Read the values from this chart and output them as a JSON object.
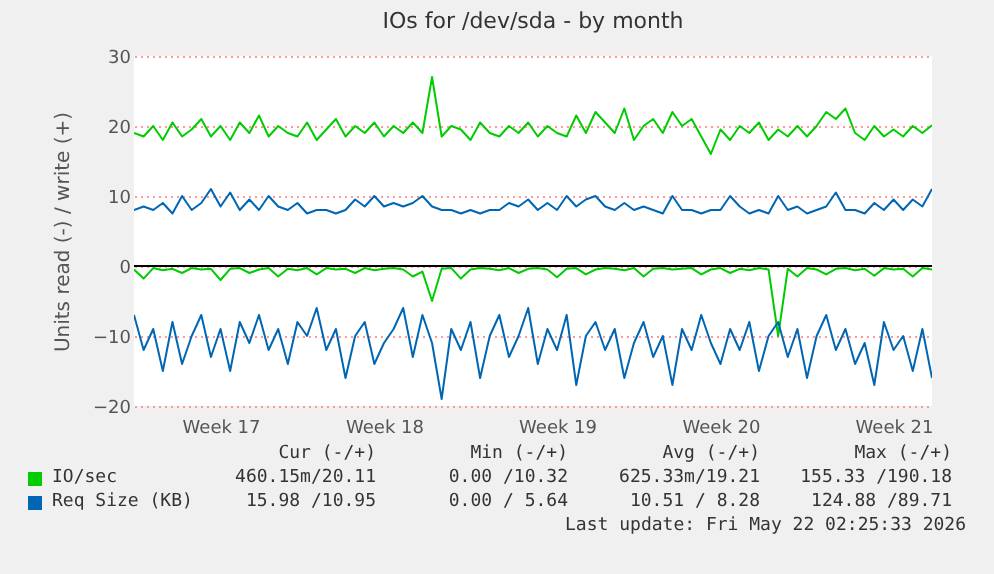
{
  "chart_data": {
    "type": "line",
    "title": "IOs for /dev/sda - by month",
    "ylabel": "Units read (-) / write (+)",
    "categories": [
      null,
      null,
      null,
      null,
      null,
      null,
      null,
      null,
      null,
      "Week 17",
      null,
      null,
      null,
      null,
      null,
      null,
      null,
      null,
      null,
      null,
      null,
      null,
      null,
      null,
      null,
      null,
      "Week 18",
      null,
      null,
      null,
      null,
      null,
      null,
      null,
      null,
      null,
      null,
      null,
      null,
      null,
      null,
      null,
      null,
      null,
      "Week 19",
      null,
      null,
      null,
      null,
      null,
      null,
      null,
      null,
      null,
      null,
      null,
      null,
      null,
      null,
      null,
      null,
      "Week 20",
      null,
      null,
      null,
      null,
      null,
      null,
      null,
      null,
      null,
      null,
      null,
      null,
      null,
      null,
      null,
      null,
      null,
      "Week 21",
      null,
      null,
      null,
      null
    ],
    "series": [
      {
        "name": "IO/sec",
        "color": "#00cc00",
        "values": [
          19,
          18.5,
          20,
          18,
          20.5,
          18.5,
          19.5,
          21,
          18.5,
          20,
          18,
          20.5,
          19,
          21.5,
          18.5,
          20,
          19,
          18.5,
          20.5,
          18,
          19.5,
          21,
          18.5,
          20,
          19,
          20.5,
          18.5,
          20,
          19,
          20.5,
          19,
          27,
          18.5,
          20,
          19.5,
          18,
          20.5,
          19,
          18.5,
          20,
          19,
          20.5,
          18.5,
          20,
          19,
          18.5,
          21.5,
          19,
          22,
          20.5,
          19,
          22.5,
          18,
          20,
          21,
          19,
          22,
          20,
          21,
          18.5,
          16,
          19.5,
          18,
          20,
          19,
          20.5,
          18,
          19.5,
          18.5,
          20,
          18.5,
          20,
          22,
          21,
          22.5,
          19,
          18,
          20,
          18.5,
          19.5,
          18.5,
          20,
          19,
          20.1
        ]
      },
      {
        "color": "#00cc00",
        "values": [
          -0.5,
          -1.8,
          -0.3,
          -0.6,
          -0.4,
          -1,
          -0.3,
          -0.5,
          -0.4,
          -2,
          -0.4,
          -0.3,
          -1,
          -0.5,
          -0.3,
          -1.5,
          -0.4,
          -0.6,
          -0.3,
          -1.2,
          -0.3,
          -0.5,
          -0.4,
          -1,
          -0.3,
          -0.6,
          -0.4,
          -0.3,
          -0.5,
          -1.5,
          -0.8,
          -5,
          -0.4,
          -0.3,
          -1.8,
          -0.5,
          -0.3,
          -0.4,
          -0.6,
          -0.3,
          -1,
          -0.4,
          -0.3,
          -0.5,
          -1.6,
          -0.4,
          -0.3,
          -1.2,
          -0.5,
          -0.3,
          -0.4,
          -0.6,
          -0.3,
          -1.5,
          -0.4,
          -0.3,
          -0.5,
          -0.4,
          -0.3,
          -1.2,
          -0.5,
          -0.3,
          -1,
          -0.4,
          -0.6,
          -0.3,
          -0.5,
          -10,
          -0.4,
          -1.5,
          -0.3,
          -0.5,
          -1.2,
          -0.4,
          -0.3,
          -0.6,
          -0.4,
          -1.4,
          -0.3,
          -0.5,
          -0.4,
          -1.5,
          -0.3,
          -0.5
        ]
      },
      {
        "name": "Req Size (KB)",
        "color": "#0066b3",
        "values": [
          8,
          8.5,
          8,
          9,
          7.5,
          10,
          8,
          9,
          11,
          8.5,
          10.5,
          8,
          9.5,
          8,
          10,
          8.5,
          8,
          9,
          7.5,
          8,
          8,
          7.5,
          8,
          9.5,
          8.5,
          10,
          8.5,
          9,
          8.5,
          9,
          10,
          8.5,
          8,
          8,
          7.5,
          8,
          7.5,
          8,
          8,
          9,
          8.5,
          9.5,
          8,
          9,
          8,
          10,
          8.5,
          9.5,
          10,
          8.5,
          8,
          9,
          8,
          8.5,
          8,
          7.5,
          10,
          8,
          8,
          7.5,
          8,
          8,
          10,
          8.5,
          7.5,
          8,
          7.5,
          10,
          8,
          8.5,
          7.5,
          8,
          8.5,
          10.5,
          8,
          8,
          7.5,
          9,
          8,
          9.5,
          8,
          9.5,
          8.5,
          11
        ]
      },
      {
        "color": "#0066b3",
        "values": [
          -7,
          -12,
          -9,
          -15,
          -8,
          -14,
          -10,
          -7,
          -13,
          -9,
          -15,
          -8,
          -11,
          -7,
          -12,
          -9,
          -14,
          -8,
          -10,
          -6,
          -12,
          -9,
          -16,
          -10,
          -8,
          -14,
          -11,
          -9,
          -6,
          -13,
          -7,
          -11,
          -19,
          -9,
          -12,
          -8,
          -16,
          -10,
          -7,
          -13,
          -10,
          -6,
          -14,
          -9,
          -12,
          -7,
          -17,
          -10,
          -8,
          -12,
          -9,
          -16,
          -11,
          -8,
          -13,
          -10,
          -17,
          -9,
          -12,
          -7,
          -11,
          -14,
          -9,
          -12,
          -8,
          -15,
          -10,
          -8,
          -13,
          -9,
          -16,
          -10,
          -7,
          -12,
          -9,
          -14,
          -11,
          -17,
          -8,
          -12,
          -10,
          -15,
          -9,
          -16
        ]
      }
    ],
    "ylim": [
      -20,
      30
    ],
    "yticks": [
      -20,
      -10,
      0,
      10,
      20,
      30
    ],
    "grid": "y",
    "legend": "bottom",
    "ref_lines": [
      {
        "axis": "y",
        "value": 0,
        "color": "#000000"
      }
    ],
    "annotations": [
      "Cur (-/+)",
      "Min (-/+)",
      "Avg (-/+)",
      "Max (-/+)",
      "460.15m/20.11",
      "0.00 /10.32",
      "625.33m/19.21",
      "155.33 /190.18",
      "15.98 /10.95",
      "0.00 / 5.64",
      "10.51 / 8.28",
      "124.88 /89.71",
      "Last update: Fri May 22 02:25:33 2026"
    ]
  }
}
